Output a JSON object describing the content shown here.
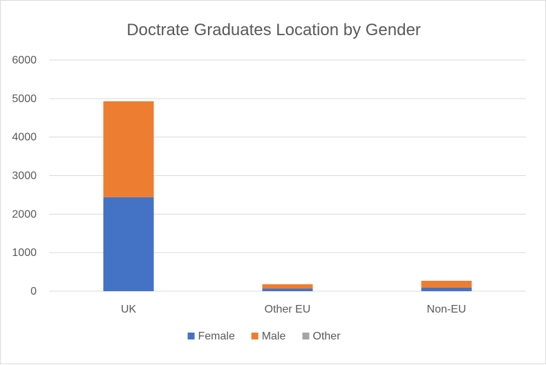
{
  "chart_data": {
    "type": "bar",
    "stacked": true,
    "title": "Doctrate Graduates Location by Gender",
    "categories": [
      "UK",
      "Other EU",
      "Non-EU"
    ],
    "series": [
      {
        "name": "Female",
        "color": "#4472C4",
        "values": [
          2440,
          70,
          90
        ]
      },
      {
        "name": "Male",
        "color": "#ED7D31",
        "values": [
          2490,
          110,
          180
        ]
      },
      {
        "name": "Other",
        "color": "#A5A5A5",
        "values": [
          0,
          0,
          0
        ]
      }
    ],
    "ylim": [
      0,
      6000
    ],
    "yticks": [
      "0",
      "1000",
      "2000",
      "3000",
      "4000",
      "5000",
      "6000"
    ],
    "grid": true,
    "legend_position": "bottom"
  }
}
